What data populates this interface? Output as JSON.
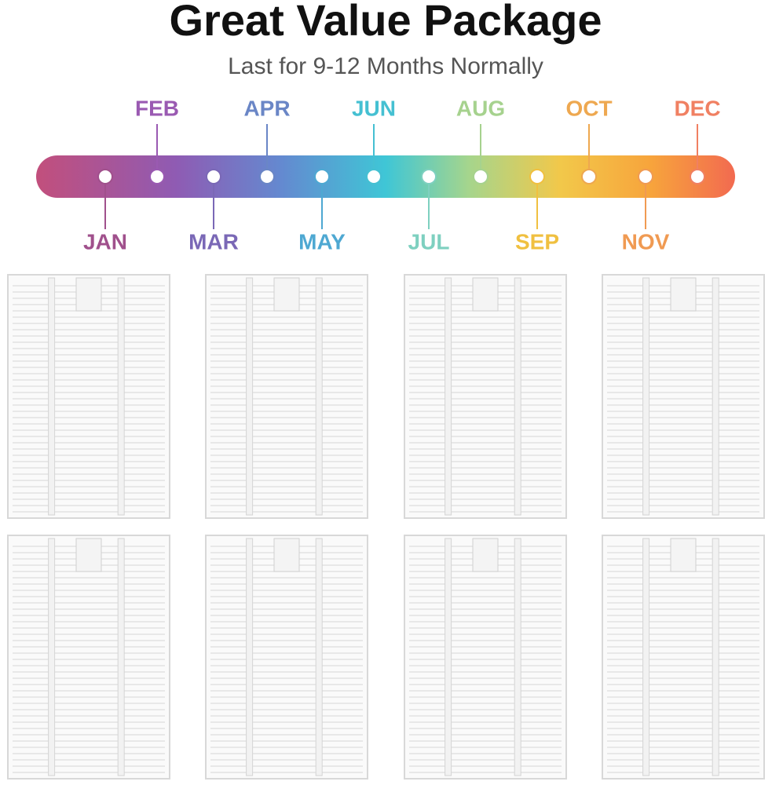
{
  "header": {
    "title": "Great Value Package",
    "subtitle": "Last for 9-12 Months Normally"
  },
  "timeline": {
    "months": [
      "JAN",
      "FEB",
      "MAR",
      "APR",
      "MAY",
      "JUN",
      "JUL",
      "AUG",
      "SEP",
      "OCT",
      "NOV",
      "DEC"
    ]
  }
}
